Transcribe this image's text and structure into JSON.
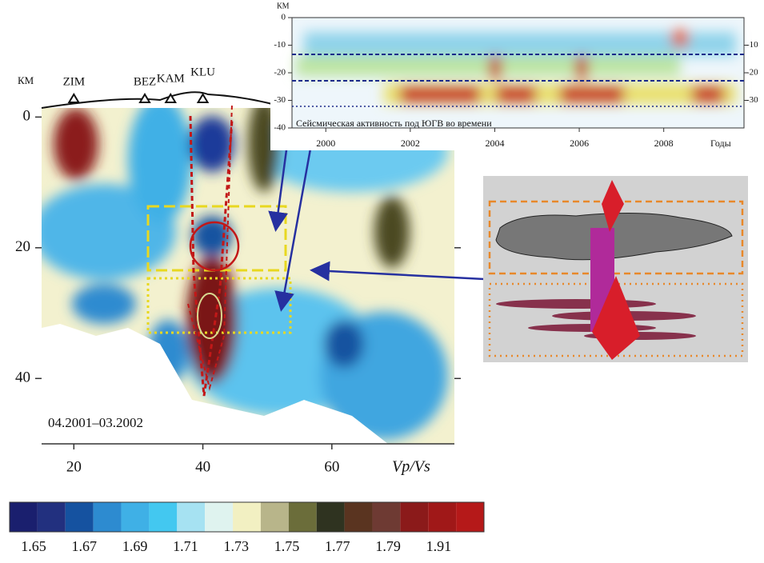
{
  "chart_data": [
    {
      "type": "section",
      "ylabel": "КМ",
      "xlabel": "Vp/Vs",
      "annotation": "04.2001–03.2002",
      "xlim": [
        15,
        79
      ],
      "ylim": [
        -2,
        50
      ],
      "xticks": [
        20,
        40,
        60
      ],
      "yticks": [
        0,
        20,
        40
      ],
      "stations": [
        {
          "name": "ZIM",
          "x": 20
        },
        {
          "name": "BEZ",
          "x": 31
        },
        {
          "name": "KAM",
          "x": 35
        },
        {
          "name": "KLU",
          "x": 40
        }
      ]
    },
    {
      "type": "timeline",
      "ylabel": "КМ",
      "xlabel": "Годы",
      "annotation": "Сейсмическая активность под ЮГВ во времени",
      "xlim": [
        1999.2,
        2009.9
      ],
      "ylim": [
        -40,
        0
      ],
      "xticks": [
        2000,
        2002,
        2004,
        2006,
        2008
      ],
      "yticks": [
        0,
        -10,
        -20,
        -30,
        -40
      ],
      "y2ticks": [
        -10,
        -20,
        -30
      ]
    },
    {
      "type": "colorbar",
      "colors": [
        "#1a1f6e",
        "#22307f",
        "#1552a0",
        "#2d8bd0",
        "#3fb0e6",
        "#43c8f0",
        "#a6e2f2",
        "#dff3ef",
        "#f2f0c2",
        "#b8b58a",
        "#6b6d3a",
        "#2f3320",
        "#5a3420",
        "#6e3a33",
        "#8b1a1a",
        "#a01818",
        "#b51919"
      ],
      "ticks": [
        1.65,
        1.67,
        1.69,
        1.71,
        1.73,
        1.75,
        1.77,
        1.79,
        1.91
      ]
    }
  ]
}
